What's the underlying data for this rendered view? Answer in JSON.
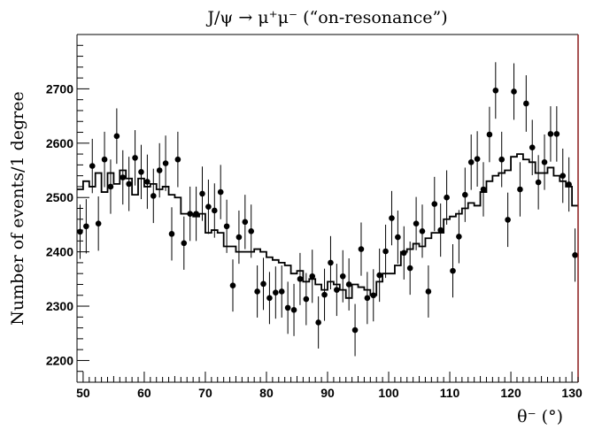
{
  "chart_data": {
    "type": "scatter",
    "title": "J/ψ → μ⁺μ⁻ (“on-resonance”)",
    "xlabel": "θ⁻ (°)",
    "ylabel": "Number of events/1 degree",
    "xlim": [
      49,
      131
    ],
    "ylim": [
      2160,
      2800
    ],
    "x_ticks": [
      50,
      60,
      70,
      80,
      90,
      100,
      110,
      120,
      130
    ],
    "y_ticks": [
      2200,
      2300,
      2400,
      2500,
      2600,
      2700
    ],
    "grid": false,
    "series": [
      {
        "kind": "points_with_errors",
        "x": [
          49.5,
          50.5,
          51.5,
          52.5,
          53.5,
          54.5,
          55.5,
          56.5,
          57.5,
          58.5,
          59.5,
          60.5,
          61.5,
          62.5,
          63.5,
          64.5,
          65.5,
          66.5,
          67.5,
          68.5,
          69.5,
          70.5,
          71.5,
          72.5,
          73.5,
          74.5,
          75.5,
          76.5,
          77.5,
          78.5,
          79.5,
          80.5,
          81.5,
          82.5,
          83.5,
          84.5,
          85.5,
          86.5,
          87.5,
          88.5,
          89.5,
          90.5,
          91.5,
          92.5,
          93.5,
          94.5,
          95.5,
          96.5,
          97.5,
          98.5,
          99.5,
          100.5,
          101.5,
          102.5,
          103.5,
          104.5,
          105.5,
          106.5,
          107.5,
          108.5,
          109.5,
          110.5,
          111.5,
          112.5,
          113.5,
          114.5,
          115.5,
          116.5,
          117.5,
          118.5,
          119.5,
          120.5,
          121.5,
          122.5,
          123.5,
          124.5,
          125.5,
          126.5,
          127.5,
          128.5,
          129.5,
          130.5
        ],
        "y": [
          2437,
          2447,
          2558,
          2452,
          2570,
          2520,
          2613,
          2537,
          2525,
          2573,
          2547,
          2529,
          2503,
          2550,
          2563,
          2433,
          2570,
          2416,
          2470,
          2470,
          2507,
          2483,
          2476,
          2510,
          2447,
          2338,
          2427,
          2455,
          2438,
          2327,
          2341,
          2315,
          2325,
          2327,
          2297,
          2293,
          2350,
          2313,
          2355,
          2270,
          2321,
          2380,
          2330,
          2355,
          2340,
          2256,
          2405,
          2315,
          2320,
          2357,
          2401,
          2462,
          2427,
          2398,
          2370,
          2452,
          2438,
          2327,
          2488,
          2440,
          2500,
          2365,
          2428,
          2505,
          2565,
          2571,
          2515,
          2616,
          2697,
          2570,
          2459,
          2695,
          2515,
          2673,
          2592,
          2528,
          2565,
          2617,
          2617,
          2540,
          2524,
          2394
        ],
        "err": [
          50,
          50,
          50,
          50,
          51,
          50,
          51,
          50,
          50,
          51,
          50,
          50,
          50,
          50,
          51,
          49,
          51,
          49,
          50,
          50,
          50,
          50,
          50,
          50,
          49,
          48,
          49,
          50,
          49,
          48,
          48,
          48,
          48,
          48,
          48,
          48,
          48,
          48,
          49,
          48,
          48,
          49,
          48,
          48,
          48,
          48,
          49,
          48,
          48,
          49,
          49,
          50,
          49,
          49,
          49,
          49,
          49,
          48,
          50,
          49,
          50,
          49,
          49,
          50,
          51,
          51,
          50,
          51,
          52,
          51,
          50,
          52,
          50,
          52,
          51,
          50,
          51,
          51,
          51,
          50,
          50,
          49
        ]
      },
      {
        "kind": "step_histogram",
        "x": [
          49.5,
          50.5,
          51.5,
          52.5,
          53.5,
          54.5,
          55.5,
          56.5,
          57.5,
          58.5,
          59.5,
          60.5,
          61.5,
          62.5,
          63.5,
          64.5,
          65.5,
          66.5,
          67.5,
          68.5,
          69.5,
          70.5,
          71.5,
          72.5,
          73.5,
          74.5,
          75.5,
          76.5,
          77.5,
          78.5,
          79.5,
          80.5,
          81.5,
          82.5,
          83.5,
          84.5,
          85.5,
          86.5,
          87.5,
          88.5,
          89.5,
          90.5,
          91.5,
          92.5,
          93.5,
          94.5,
          95.5,
          96.5,
          97.5,
          98.5,
          99.5,
          100.5,
          101.5,
          102.5,
          103.5,
          104.5,
          105.5,
          106.5,
          107.5,
          108.5,
          109.5,
          110.5,
          111.5,
          112.5,
          113.5,
          114.5,
          115.5,
          116.5,
          117.5,
          118.5,
          119.5,
          120.5,
          121.5,
          122.5,
          123.5,
          124.5,
          125.5,
          126.5,
          127.5,
          128.5,
          129.5,
          130.5
        ],
        "y": [
          2515,
          2530,
          2520,
          2545,
          2510,
          2545,
          2525,
          2550,
          2535,
          2505,
          2535,
          2520,
          2525,
          2515,
          2520,
          2505,
          2500,
          2470,
          2470,
          2465,
          2470,
          2435,
          2440,
          2435,
          2410,
          2410,
          2400,
          2400,
          2400,
          2405,
          2400,
          2390,
          2385,
          2380,
          2375,
          2360,
          2365,
          2345,
          2350,
          2340,
          2330,
          2345,
          2340,
          2330,
          2315,
          2340,
          2335,
          2330,
          2320,
          2345,
          2360,
          2360,
          2375,
          2400,
          2405,
          2415,
          2410,
          2425,
          2435,
          2435,
          2460,
          2465,
          2470,
          2480,
          2490,
          2485,
          2510,
          2530,
          2540,
          2545,
          2550,
          2575,
          2580,
          2570,
          2565,
          2545,
          2545,
          2555,
          2540,
          2530,
          2520,
          2485
        ]
      }
    ]
  }
}
